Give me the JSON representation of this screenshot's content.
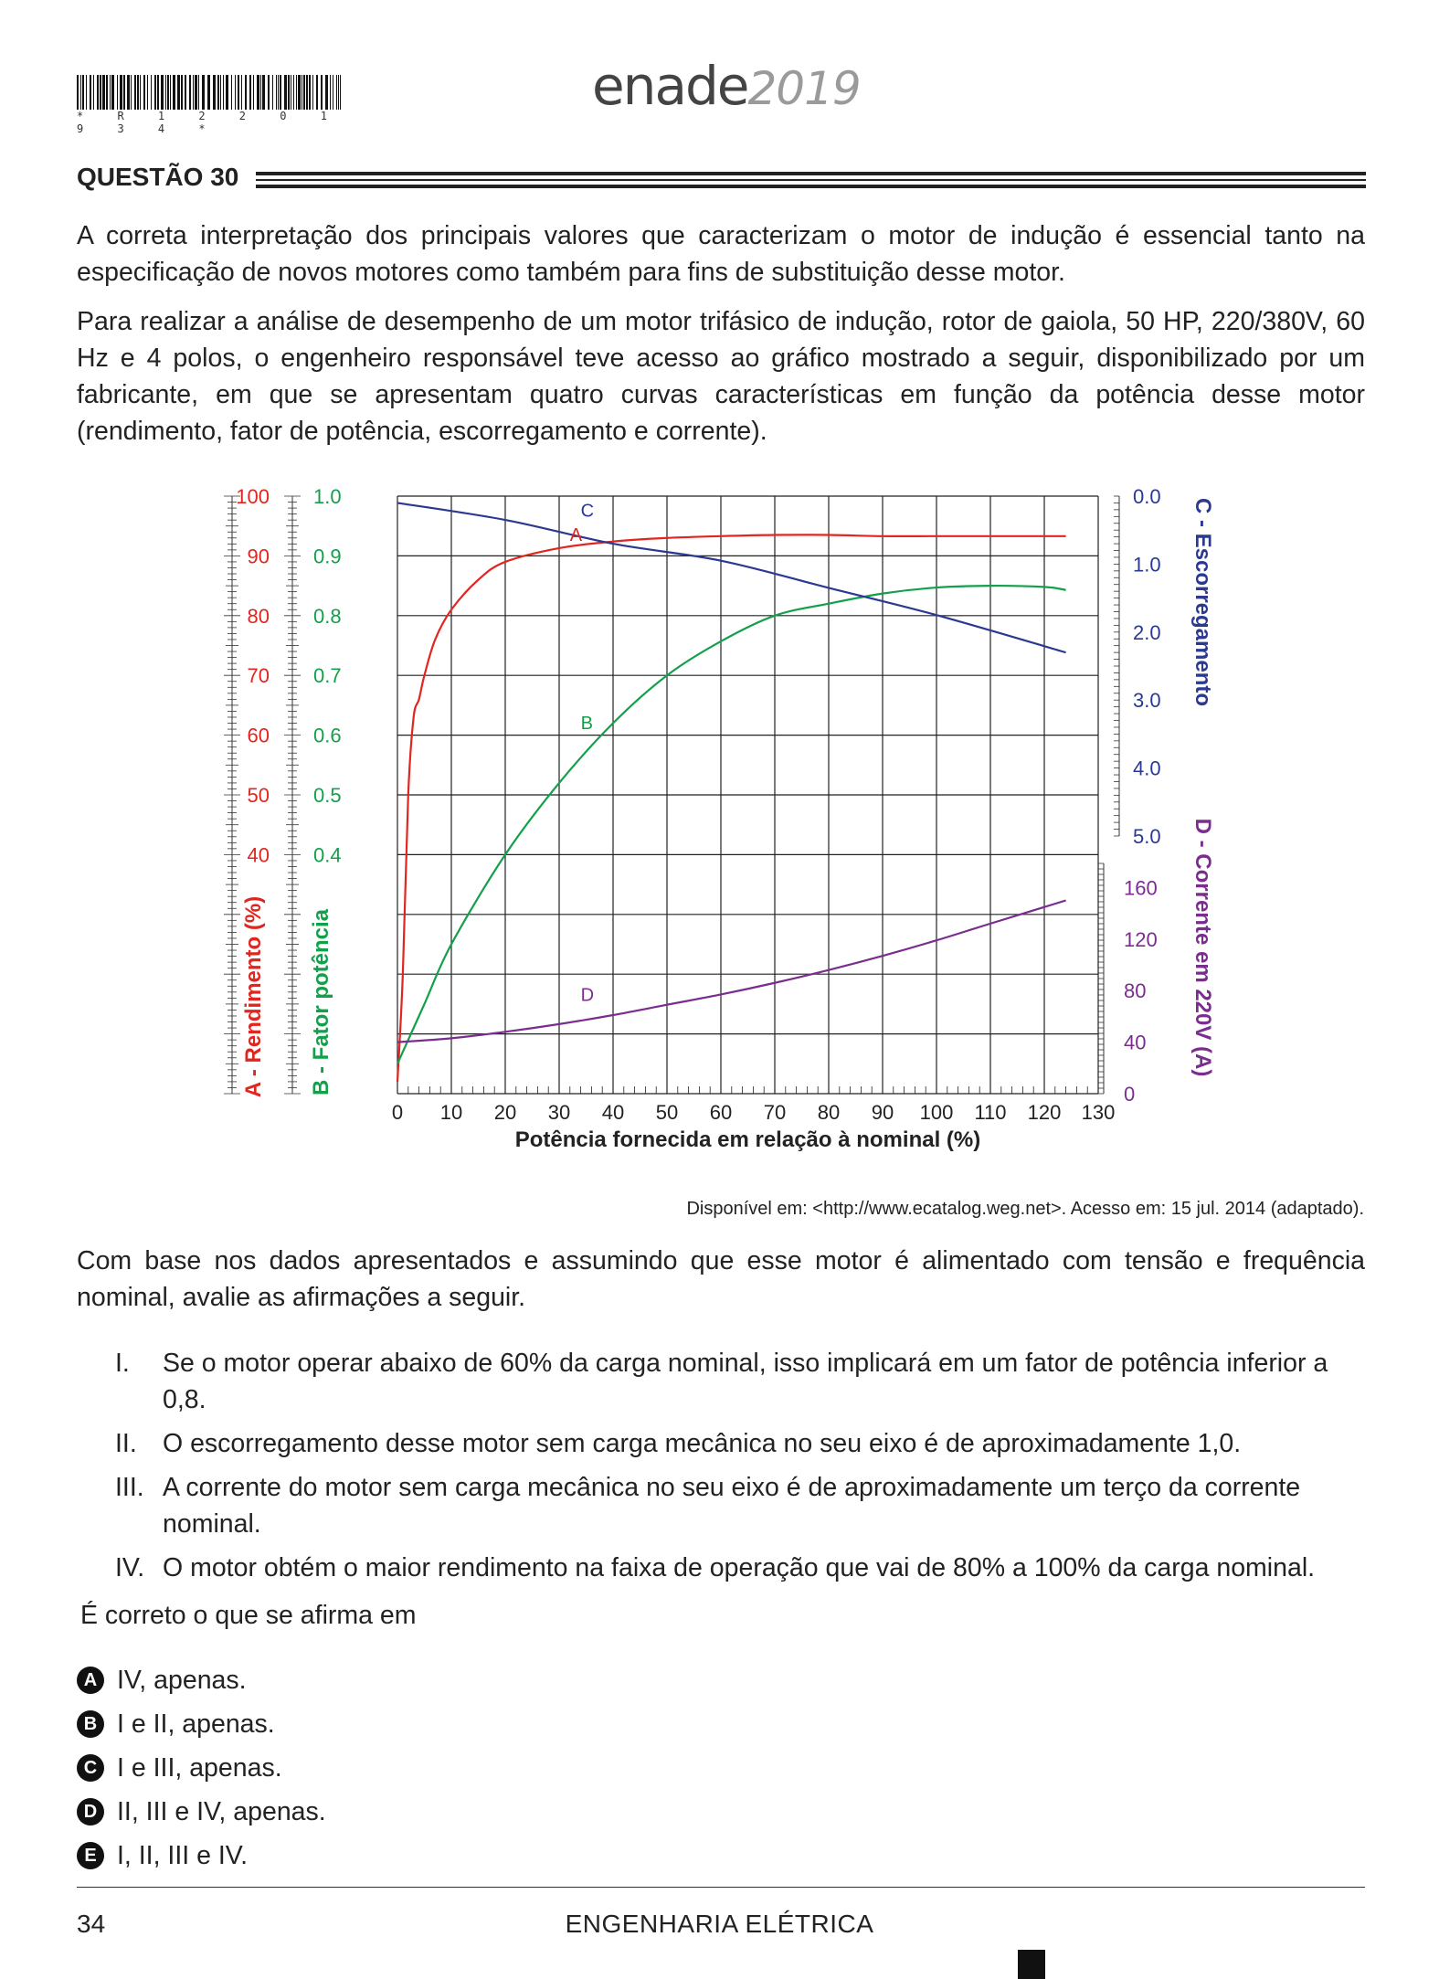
{
  "header": {
    "barcode_text": "* R 1 2 2 0 1 9 3 4 *",
    "logo_main": "enade",
    "logo_year": "2019"
  },
  "question": {
    "title": "QUESTÃO 30",
    "intro_1": "A correta interpretação dos principais valores que caracterizam o motor de indução é essencial tanto na especificação de novos motores como também para fins de substituição desse motor.",
    "intro_2": "Para realizar a análise de desempenho de um motor trifásico de indução, rotor de gaiola, 50 HP, 220/380V, 60 Hz e 4 polos, o engenheiro responsável teve acesso ao gráfico mostrado a seguir, disponibilizado por um fabricante, em que se apresentam quatro curvas características em função da potência desse motor (rendimento, fator de potência, escorregamento e corrente).",
    "source": "Disponível em: <http://www.ecatalog.weg.net>. Acesso em: 15 jul. 2014 (adaptado).",
    "body_text": "Com base nos dados apresentados e assumindo que esse motor é alimentado com tensão e frequência nominal, avalie as afirmações a seguir.",
    "statements": [
      {
        "num": "I.",
        "text": "Se o motor operar abaixo de 60% da carga nominal, isso implicará em um fator de potência inferior a 0,8."
      },
      {
        "num": "II.",
        "text": "O escorregamento desse motor sem carga mecânica no seu eixo é de aproximadamente 1,0."
      },
      {
        "num": "III.",
        "text": "A corrente do motor sem carga mecânica no seu eixo é de aproximadamente um terço da corrente nominal."
      },
      {
        "num": "IV.",
        "text": "O motor obtém o maior rendimento na faixa de operação que vai de 80% a 100% da carga nominal."
      }
    ],
    "prompt": "É correto o que se afirma em",
    "options": [
      {
        "letter": "A",
        "text": "IV, apenas."
      },
      {
        "letter": "B",
        "text": "I e II, apenas."
      },
      {
        "letter": "C",
        "text": "I e III, apenas."
      },
      {
        "letter": "D",
        "text": "II, III e IV, apenas."
      },
      {
        "letter": "E",
        "text": "I, II, III e IV."
      }
    ]
  },
  "footer": {
    "page_number": "34",
    "course": "ENGENHARIA ELÉTRICA"
  },
  "chart_data": {
    "type": "line",
    "xlabel": "Potência fornecida em relação à nominal (%)",
    "xlim": [
      0,
      130
    ],
    "x_ticks": [
      "0",
      "10",
      "20",
      "30",
      "40",
      "50",
      "60",
      "70",
      "80",
      "90",
      "100",
      "110",
      "120",
      "130"
    ],
    "axes": {
      "rendimento": {
        "label": "A - Rendimento (%)",
        "range": [
          0,
          100
        ],
        "ticks": [
          "100",
          "90",
          "80",
          "70",
          "60",
          "50",
          "40"
        ],
        "color": "#e0261f"
      },
      "fator_potencia": {
        "label": "B - Fator potência",
        "range": [
          0,
          1
        ],
        "ticks": [
          "1.0",
          "0.9",
          "0.8",
          "0.7",
          "0.6",
          "0.5",
          "0.4"
        ],
        "color": "#13a04a"
      },
      "escorregamento": {
        "label": "C - Escorregamento",
        "range": [
          0,
          5
        ],
        "ticks": [
          "0.0",
          "1.0",
          "2.0",
          "3.0",
          "4.0",
          "5.0"
        ],
        "color": "#2b3990"
      },
      "corrente": {
        "label": "D - Corrente em 220V (A)",
        "range": [
          0,
          200
        ],
        "ticks": [
          "160",
          "120",
          "80",
          "40",
          "0"
        ],
        "color": "#7b2d8e"
      }
    },
    "series": [
      {
        "name": "A",
        "axis": "rendimento",
        "color": "#e0261f",
        "x": [
          0,
          1,
          2,
          3,
          4,
          5,
          7,
          10,
          15,
          20,
          30,
          40,
          50,
          60,
          70,
          80,
          90,
          100,
          110,
          124
        ],
        "y": [
          2,
          20,
          50,
          63,
          66,
          70,
          76,
          81,
          86,
          89,
          91.3,
          92.4,
          93,
          93.3,
          93.5,
          93.5,
          93.3,
          93.3,
          93.3,
          93.3
        ]
      },
      {
        "name": "B",
        "axis": "fator_potencia",
        "color": "#13a04a",
        "x": [
          0,
          5,
          10,
          20,
          30,
          40,
          50,
          60,
          70,
          80,
          90,
          100,
          110,
          120,
          124
        ],
        "y": [
          0.05,
          0.15,
          0.25,
          0.4,
          0.52,
          0.62,
          0.7,
          0.757,
          0.8,
          0.82,
          0.837,
          0.847,
          0.85,
          0.848,
          0.843
        ]
      },
      {
        "name": "C",
        "axis": "escorregamento",
        "color": "#2b3990",
        "x": [
          0,
          20,
          40,
          60,
          80,
          100,
          124
        ],
        "y": [
          0.1,
          0.35,
          0.7,
          0.95,
          1.35,
          1.75,
          2.3
        ]
      },
      {
        "name": "D",
        "axis": "corrente",
        "color": "#7b2d8e",
        "x": [
          0,
          10,
          20,
          30,
          40,
          50,
          60,
          70,
          80,
          90,
          100,
          110,
          124
        ],
        "y": [
          40,
          43,
          48,
          54,
          61,
          69,
          77,
          86,
          96,
          107,
          119,
          132,
          150
        ]
      }
    ],
    "curve_labels": [
      {
        "text": "C",
        "x": 34,
        "axis": "escorregamento",
        "y": 0.3
      },
      {
        "text": "A",
        "x": 32,
        "axis": "rendimento",
        "y": 92.5
      },
      {
        "text": "B",
        "x": 34,
        "axis": "fator_potencia",
        "y": 0.61
      },
      {
        "text": "D",
        "x": 34,
        "axis": "corrente",
        "y": 72
      }
    ],
    "grid": true
  }
}
